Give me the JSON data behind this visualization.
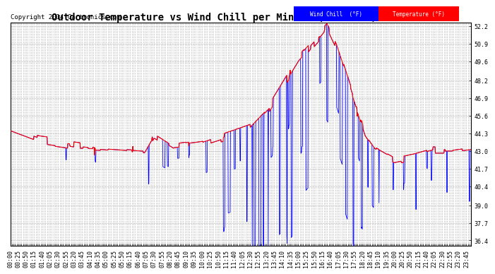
{
  "title": "Outdoor Temperature vs Wind Chill per Minute (24 Hours) 20140412",
  "copyright": "Copyright 2014 Cartronics.com",
  "yticks": [
    36.4,
    37.7,
    39.0,
    40.4,
    41.7,
    43.0,
    44.3,
    45.6,
    46.9,
    48.2,
    49.6,
    50.9,
    52.2
  ],
  "ylim": [
    36.0,
    52.5
  ],
  "wind_chill_color": "#0000FF",
  "temperature_color": "#FF0000",
  "legend_wc_bg": "#0000FF",
  "legend_temp_bg": "#FF0000",
  "background_color": "#ffffff",
  "grid_color": "#c0c0c0",
  "title_fontsize": 10,
  "copyright_fontsize": 6.5,
  "tick_fontsize": 6
}
